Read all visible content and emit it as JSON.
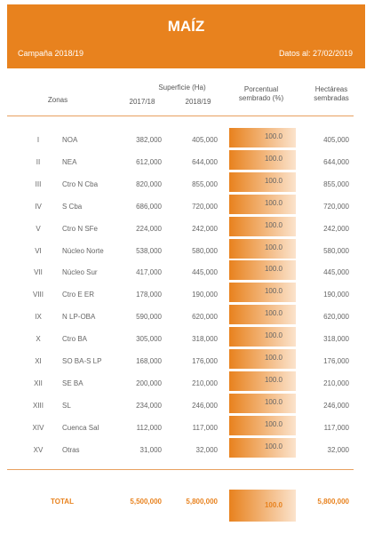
{
  "header": {
    "title": "MAÍZ",
    "campaign": "Campaña 2018/19",
    "date": "Datos al: 27/02/2019"
  },
  "columns": {
    "zonas": "Zonas",
    "superficie": "Superficie (Ha)",
    "y2017": "2017/18",
    "y2018": "2018/19",
    "porcentual": "Porcentual sembrado (%)",
    "hectareas": "Hectáreas sembradas"
  },
  "table": {
    "rows": [
      [
        "I",
        "NOA",
        "382,000",
        "405,000",
        "100.0",
        "405,000"
      ],
      [
        "II",
        "NEA",
        "612,000",
        "644,000",
        "100.0",
        "644,000"
      ],
      [
        "III",
        "Ctro N Cba",
        "820,000",
        "855,000",
        "100.0",
        "855,000"
      ],
      [
        "IV",
        "S Cba",
        "686,000",
        "720,000",
        "100.0",
        "720,000"
      ],
      [
        "V",
        "Ctro N SFe",
        "224,000",
        "242,000",
        "100.0",
        "242,000"
      ],
      [
        "VI",
        "Núcleo Norte",
        "538,000",
        "580,000",
        "100.0",
        "580,000"
      ],
      [
        "VII",
        "Núcleo Sur",
        "417,000",
        "445,000",
        "100.0",
        "445,000"
      ],
      [
        "VIII",
        "Ctro E ER",
        "178,000",
        "190,000",
        "100.0",
        "190,000"
      ],
      [
        "IX",
        "N LP-OBA",
        "590,000",
        "620,000",
        "100.0",
        "620,000"
      ],
      [
        "X",
        "Ctro BA",
        "305,000",
        "318,000",
        "100.0",
        "318,000"
      ],
      [
        "XI",
        "SO BA-S LP",
        "168,000",
        "176,000",
        "100.0",
        "176,000"
      ],
      [
        "XII",
        "SE BA",
        "200,000",
        "210,000",
        "100.0",
        "210,000"
      ],
      [
        "XIII",
        "SL",
        "234,000",
        "246,000",
        "100.0",
        "246,000"
      ],
      [
        "XIV",
        "Cuenca Sal",
        "112,000",
        "117,000",
        "100.0",
        "117,000"
      ],
      [
        "XV",
        "Otras",
        "31,000",
        "32,000",
        "100.0",
        "32,000"
      ]
    ],
    "total": [
      "TOTAL",
      "5,500,000",
      "5,800,000",
      "100.0",
      "5,800,000"
    ]
  }
}
